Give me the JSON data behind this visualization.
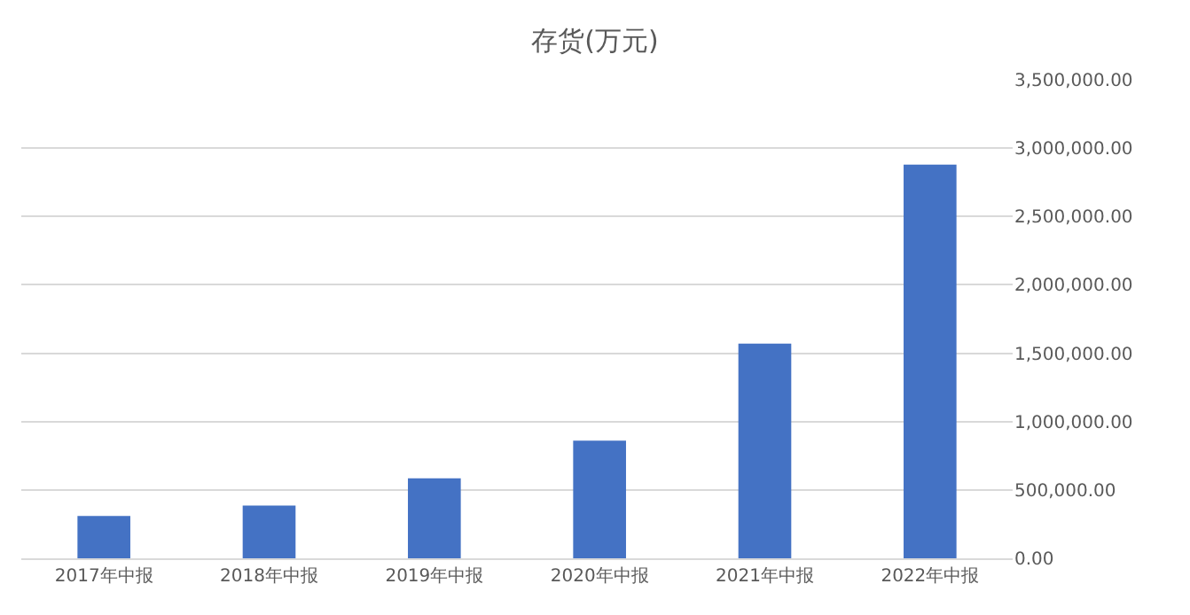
{
  "chart_data": {
    "type": "bar",
    "title": "存货(万元)",
    "categories": [
      "2017年中报",
      "2018年中报",
      "2019年中报",
      "2020年中报",
      "2021年中报",
      "2022年中报"
    ],
    "values": [
      310000,
      385000,
      585000,
      860000,
      1570000,
      2880000
    ],
    "color": "#4472c4",
    "ylim": [
      0,
      3500000
    ],
    "yticks": [
      {
        "value": 0,
        "label": "0.00"
      },
      {
        "value": 500000,
        "label": "500,000.00"
      },
      {
        "value": 1000000,
        "label": "1,000,000.00"
      },
      {
        "value": 1500000,
        "label": "1,500,000.00"
      },
      {
        "value": 2000000,
        "label": "2,000,000.00"
      },
      {
        "value": 2500000,
        "label": "2,500,000.00"
      },
      {
        "value": 3000000,
        "label": "3,000,000.00"
      },
      {
        "value": 3500000,
        "label": "3,500,000.00"
      }
    ],
    "grid": "y"
  }
}
